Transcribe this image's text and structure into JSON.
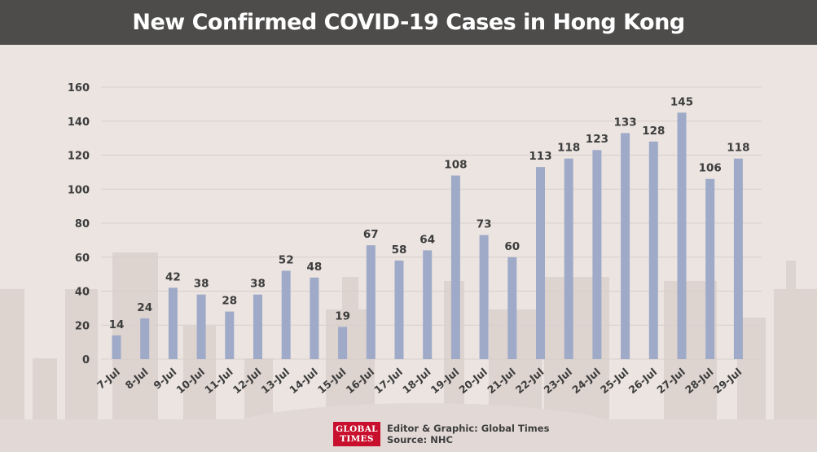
{
  "title": "New Confirmed COVID-19 Cases in Hong Kong",
  "footer": {
    "logo_line1": "GLOBAL",
    "logo_line2": "TIMES",
    "editor": "Editor & Graphic: Global Times",
    "source": "Source: NHC"
  },
  "colors": {
    "background": "#ebe4e1",
    "title_bar": "#4d4c4b",
    "bar": "#9faac8",
    "grid": "#d7cfcb",
    "text": "#3d3d3d",
    "logo": "#c8102e"
  },
  "chart_data": {
    "type": "bar",
    "categories": [
      "7-Jul",
      "8-Jul",
      "9-Jul",
      "10-Jul",
      "11-Jul",
      "12-Jul",
      "13-Jul",
      "14-Jul",
      "15-Jul",
      "16-Jul",
      "17-Jul",
      "18-Jul",
      "19-Jul",
      "20-Jul",
      "21-Jul",
      "22-Jul",
      "23-Jul",
      "24-Jul",
      "25-Jul",
      "26-Jul",
      "27-Jul",
      "28-Jul",
      "29-Jul"
    ],
    "values": [
      14,
      24,
      42,
      38,
      28,
      38,
      52,
      48,
      19,
      67,
      58,
      64,
      108,
      73,
      60,
      113,
      118,
      123,
      133,
      128,
      145,
      106,
      118
    ],
    "yticks": [
      0,
      20,
      40,
      60,
      80,
      100,
      120,
      140,
      160
    ],
    "ylim": [
      0,
      160
    ],
    "grid": true,
    "data_labels": true,
    "xlabel": "",
    "ylabel": ""
  }
}
